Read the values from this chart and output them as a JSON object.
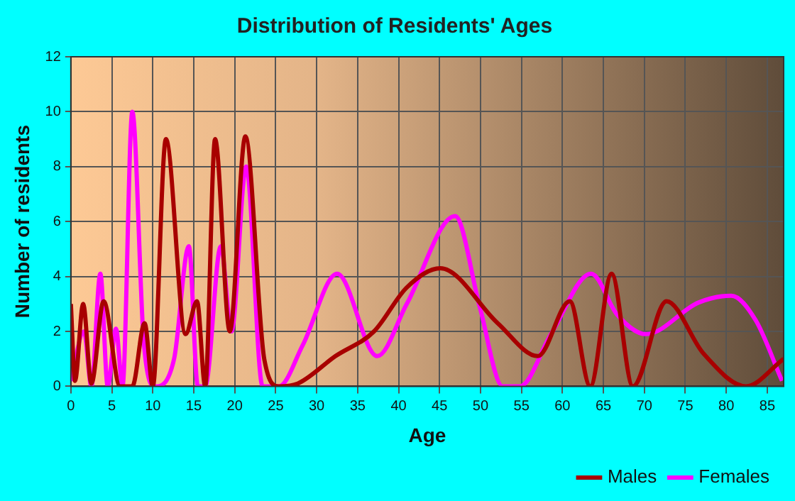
{
  "chart_data": {
    "type": "line",
    "title": "Distribution of Residents' Ages",
    "xlabel": "Age",
    "ylabel": "Number of residents",
    "xlim": [
      0,
      87
    ],
    "xticks": [
      0,
      5,
      10,
      15,
      20,
      25,
      30,
      35,
      40,
      45,
      50,
      55,
      60,
      65,
      70,
      75,
      80,
      85
    ],
    "ylim": [
      0,
      12
    ],
    "yticks": [
      0,
      2,
      4,
      6,
      8,
      10,
      12
    ],
    "grid": true,
    "legend": "bottom right",
    "marker": "none",
    "line_style": "solid",
    "series": [
      {
        "name": "Males",
        "color": "#a80000",
        "x": [
          0,
          0.5,
          1.5,
          2.5,
          4,
          6,
          7.5,
          9,
          10,
          11.6,
          14,
          15.4,
          16.4,
          17.6,
          19.4,
          21.3,
          23.6,
          25.4,
          27.7,
          32.3,
          37,
          41,
          45.1,
          52.1,
          57,
          60.9,
          63.4,
          66,
          68.6,
          72.7,
          77.2,
          82.4,
          87
        ],
        "values": [
          3,
          0.2,
          3,
          0.1,
          3.1,
          0,
          0,
          2.3,
          0,
          9,
          1.9,
          3.1,
          0,
          9,
          2,
          9.1,
          1,
          0,
          0.1,
          1.1,
          2,
          3.6,
          4.3,
          2.3,
          1.1,
          3.1,
          0,
          4.1,
          0,
          3.1,
          1.2,
          0,
          1
        ]
      },
      {
        "name": "Females",
        "color": "#ff00ff",
        "x": [
          0,
          1.6,
          2.5,
          3.6,
          4.5,
          5.5,
          6.3,
          7.5,
          8.9,
          10.3,
          12.6,
          14.4,
          15.5,
          16.4,
          18.3,
          19.6,
          21.4,
          23.4,
          25.4,
          28.3,
          32.5,
          37.4,
          41,
          46.9,
          49.9,
          52.7,
          54.8,
          58.6,
          63.5,
          66.7,
          70.2,
          76.6,
          80.6,
          83.6,
          86.8
        ],
        "values": [
          0.2,
          2,
          0,
          4.1,
          0,
          2.1,
          0,
          10,
          1.6,
          0,
          1,
          5.1,
          0,
          0,
          5.1,
          2,
          8,
          0,
          0,
          1.5,
          4.1,
          1.1,
          3,
          6.2,
          2.9,
          0,
          0,
          1.9,
          4.1,
          2.6,
          1.9,
          3.05,
          3.3,
          2.4,
          0.2
        ]
      }
    ]
  }
}
